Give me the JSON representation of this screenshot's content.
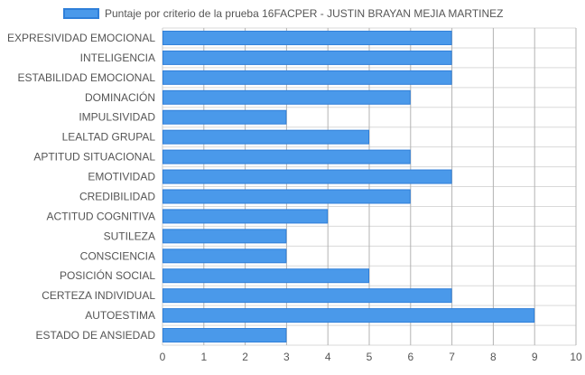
{
  "chart_data": {
    "type": "bar",
    "orientation": "horizontal",
    "legend": {
      "label": "Puntaje por criterio de la prueba 16FACPER - JUSTIN BRAYAN  MEJIA MARTINEZ",
      "placement": "top"
    },
    "categories": [
      "EXPRESIVIDAD EMOCIONAL",
      "INTELIGENCIA",
      "ESTABILIDAD EMOCIONAL",
      "DOMINACIÓN",
      "IMPULSIVIDAD",
      "LEALTAD GRUPAL",
      "APTITUD SITUACIONAL",
      "EMOTIVIDAD",
      "CREDIBILIDAD",
      "ACTITUD COGNITIVA",
      "SUTILEZA",
      "CONSCIENCIA",
      "POSICIÓN SOCIAL",
      "CERTEZA INDIVIDUAL",
      "AUTOESTIMA",
      "ESTADO DE ANSIEDAD"
    ],
    "series": [
      {
        "name": "Puntaje por criterio de la prueba 16FACPER - JUSTIN BRAYAN  MEJIA MARTINEZ",
        "values": [
          7,
          7,
          7,
          6,
          3,
          5,
          6,
          7,
          6,
          4,
          3,
          3,
          5,
          7,
          9,
          3
        ]
      }
    ],
    "xlim": [
      0,
      10
    ],
    "xticks": [
      "0",
      "1",
      "2",
      "3",
      "4",
      "5",
      "6",
      "7",
      "8",
      "9",
      "10"
    ],
    "grid": true,
    "colors": {
      "bar_fill": "#4a99ea",
      "bar_border": "#2f7fd9",
      "grid": "#d9d9d9",
      "grid_major": "#b3b3b3",
      "text": "#555555"
    }
  }
}
